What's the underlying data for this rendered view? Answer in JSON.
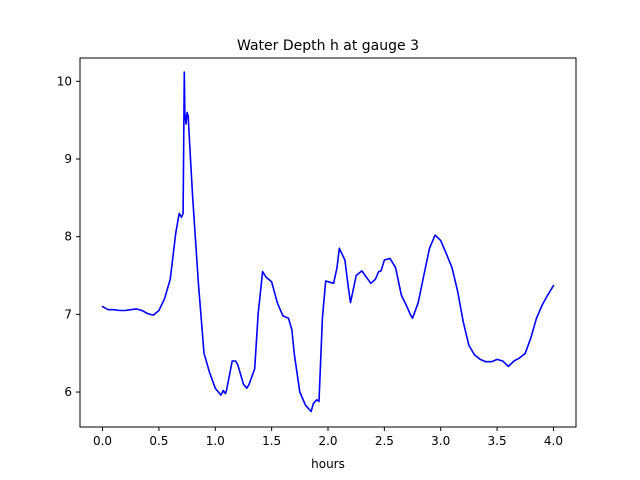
{
  "chart_data": {
    "type": "line",
    "title": "Water Depth h at gauge 3",
    "xlabel": "hours",
    "ylabel": "",
    "xlim": [
      -0.2,
      4.2
    ],
    "ylim": [
      5.55,
      10.3
    ],
    "xticks": [
      0.0,
      0.5,
      1.0,
      1.5,
      2.0,
      2.5,
      3.0,
      3.5,
      4.0
    ],
    "xtick_labels": [
      "0.0",
      "0.5",
      "1.0",
      "1.5",
      "2.0",
      "2.5",
      "3.0",
      "3.5",
      "4.0"
    ],
    "yticks": [
      6,
      7,
      8,
      9,
      10
    ],
    "ytick_labels": [
      "6",
      "7",
      "8",
      "9",
      "10"
    ],
    "grid": false,
    "series": [
      {
        "color": "#0000ff",
        "x": [
          0.0,
          0.05,
          0.1,
          0.15,
          0.2,
          0.25,
          0.3,
          0.35,
          0.4,
          0.45,
          0.5,
          0.55,
          0.6,
          0.65,
          0.68,
          0.7,
          0.715,
          0.72,
          0.725,
          0.73,
          0.74,
          0.75,
          0.76,
          0.78,
          0.8,
          0.85,
          0.9,
          0.95,
          1.0,
          1.05,
          1.07,
          1.09,
          1.1,
          1.15,
          1.18,
          1.2,
          1.25,
          1.28,
          1.3,
          1.35,
          1.38,
          1.42,
          1.45,
          1.5,
          1.55,
          1.6,
          1.65,
          1.68,
          1.7,
          1.75,
          1.8,
          1.85,
          1.87,
          1.9,
          1.92,
          1.95,
          1.98,
          2.0,
          2.05,
          2.08,
          2.1,
          2.15,
          2.18,
          2.2,
          2.25,
          2.3,
          2.33,
          2.38,
          2.42,
          2.45,
          2.47,
          2.5,
          2.55,
          2.6,
          2.65,
          2.7,
          2.73,
          2.75,
          2.8,
          2.85,
          2.9,
          2.95,
          3.0,
          3.05,
          3.1,
          3.15,
          3.2,
          3.25,
          3.3,
          3.35,
          3.4,
          3.45,
          3.5,
          3.55,
          3.6,
          3.65,
          3.7,
          3.75,
          3.8,
          3.85,
          3.9,
          3.95,
          4.0
        ],
        "y": [
          7.1,
          7.06,
          7.06,
          7.05,
          7.05,
          7.06,
          7.07,
          7.05,
          7.01,
          6.99,
          7.05,
          7.2,
          7.45,
          8.05,
          8.3,
          8.25,
          8.3,
          9.2,
          10.12,
          9.6,
          9.45,
          9.6,
          9.55,
          9.0,
          8.5,
          7.4,
          6.5,
          6.25,
          6.05,
          5.96,
          6.02,
          5.98,
          6.02,
          6.4,
          6.4,
          6.35,
          6.1,
          6.05,
          6.1,
          6.3,
          7.0,
          7.55,
          7.48,
          7.42,
          7.15,
          6.98,
          6.95,
          6.8,
          6.5,
          6.0,
          5.83,
          5.75,
          5.85,
          5.9,
          5.88,
          6.95,
          7.43,
          7.42,
          7.4,
          7.6,
          7.85,
          7.7,
          7.35,
          7.15,
          7.5,
          7.56,
          7.5,
          7.4,
          7.45,
          7.55,
          7.56,
          7.7,
          7.72,
          7.6,
          7.25,
          7.1,
          7.0,
          6.95,
          7.15,
          7.5,
          7.85,
          8.02,
          7.95,
          7.78,
          7.6,
          7.3,
          6.9,
          6.6,
          6.48,
          6.42,
          6.39,
          6.39,
          6.42,
          6.4,
          6.33,
          6.4,
          6.44,
          6.5,
          6.7,
          6.95,
          7.12,
          7.25,
          7.37
        ]
      }
    ]
  }
}
